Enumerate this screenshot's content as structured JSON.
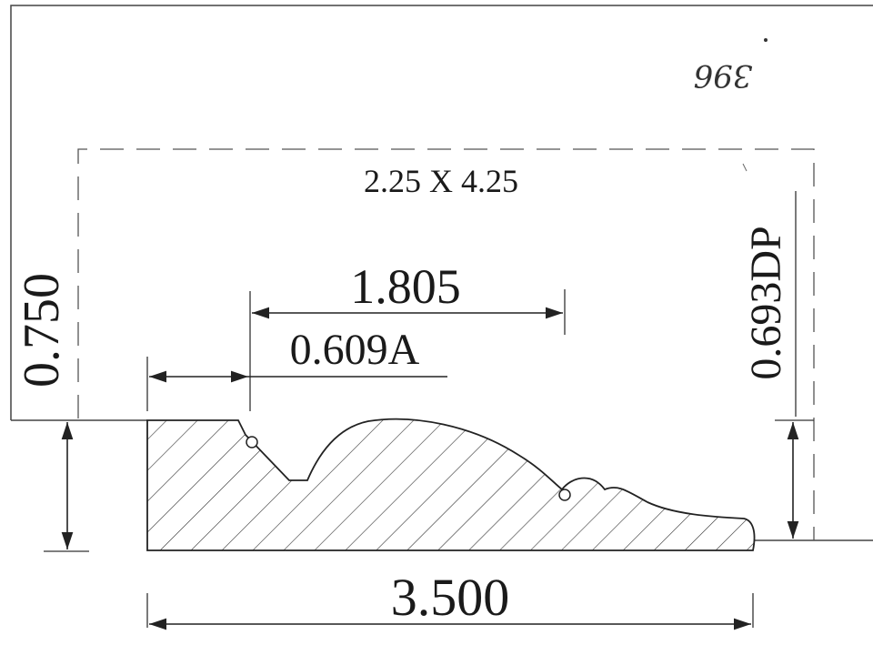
{
  "drawing": {
    "handwritten_note": "396",
    "blank_size": "2.25 X 4.25",
    "dimensions": {
      "overall_width": "3.500",
      "left_height": "0.750",
      "profile_depth": "0.693DP",
      "offset_a": "0.609A",
      "feature_width": "1.805"
    }
  }
}
